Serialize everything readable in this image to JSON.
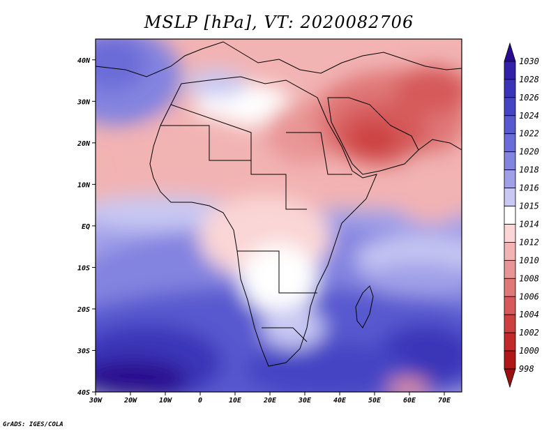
{
  "title": "MSLP [hPa], VT: 2020082706",
  "footer": "GrADS: IGES/COLA",
  "map": {
    "projection": "latlon",
    "lon_range": [
      -30,
      75
    ],
    "lat_range": [
      -40,
      45
    ],
    "lon_ticks": [
      "30W",
      "20W",
      "10W",
      "0",
      "10E",
      "20E",
      "30E",
      "40E",
      "50E",
      "60E",
      "70E"
    ],
    "lat_ticks": [
      "40S",
      "30S",
      "20S",
      "10S",
      "EQ",
      "10N",
      "20N",
      "30N",
      "40N"
    ]
  },
  "colorbar": {
    "levels": [
      "1030",
      "1028",
      "1026",
      "1024",
      "1022",
      "1020",
      "1018",
      "1016",
      "1015",
      "1014",
      "1012",
      "1010",
      "1008",
      "1006",
      "1004",
      "1002",
      "1000",
      "998"
    ],
    "colors": [
      "#2a0b8f",
      "#3320a8",
      "#3a34b8",
      "#4545c4",
      "#5858cf",
      "#6c6cd8",
      "#8383e0",
      "#a0a0e9",
      "#c8c8f3",
      "#ffffff",
      "#fad6d6",
      "#f2b3b3",
      "#e99595",
      "#e07878",
      "#d65a5a",
      "#cc4040",
      "#c02a2a",
      "#ae1818",
      "#9a1010"
    ]
  }
}
